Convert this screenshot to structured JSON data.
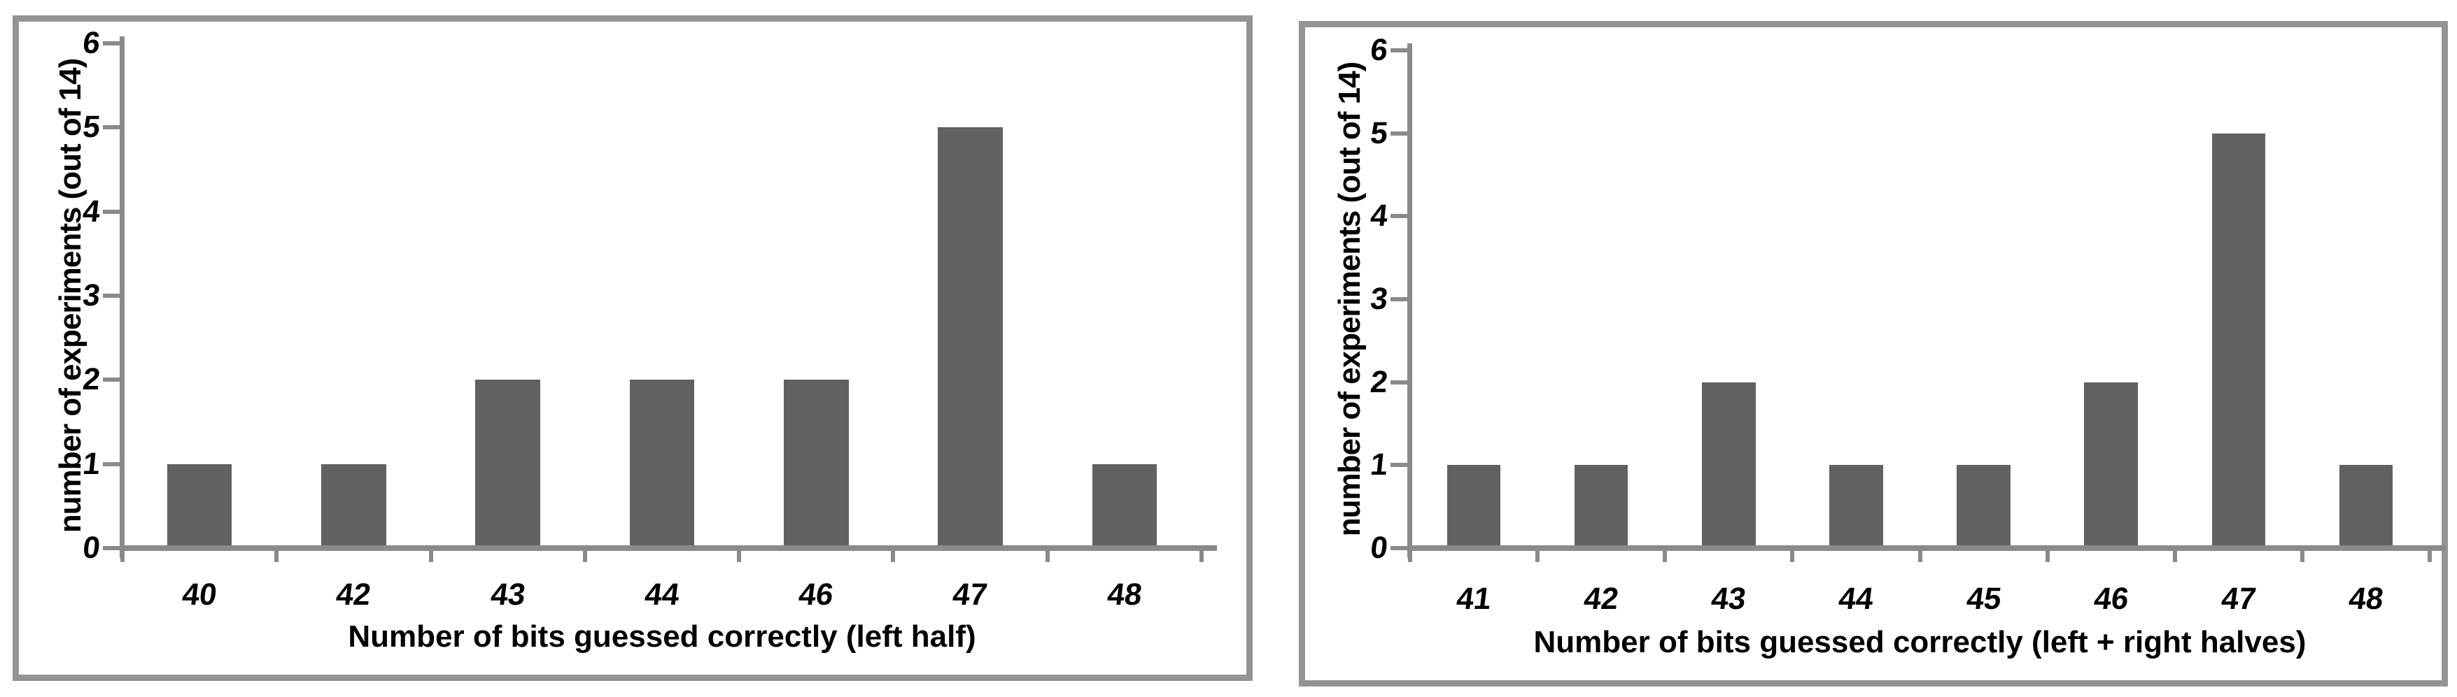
{
  "colors": {
    "background": "#ffffff",
    "bar_fill": "#616161",
    "axis_line": "#8a8a8a",
    "panel_border": "#949494",
    "text": "#000000"
  },
  "chart_data": [
    {
      "type": "bar",
      "title": "",
      "categories": [
        "40",
        "42",
        "43",
        "44",
        "46",
        "47",
        "48"
      ],
      "values": [
        1,
        1,
        2,
        2,
        2,
        5,
        1
      ],
      "xlabel": "Number of bits guessed correctly (left half)",
      "ylabel": "number of experiments (out of 14)",
      "ylim": [
        0,
        6
      ],
      "yticks": [
        0,
        1,
        2,
        3,
        4,
        5,
        6
      ],
      "grid": false,
      "legend": false
    },
    {
      "type": "bar",
      "title": "",
      "categories": [
        "41",
        "42",
        "43",
        "44",
        "45",
        "46",
        "47",
        "48"
      ],
      "values": [
        1,
        1,
        2,
        1,
        1,
        2,
        5,
        1
      ],
      "xlabel": "Number of bits guessed correctly (left + right halves)",
      "ylabel": "number of experiments (out of 14)",
      "ylim": [
        0,
        6
      ],
      "yticks": [
        0,
        1,
        2,
        3,
        4,
        5,
        6
      ],
      "grid": false,
      "legend": false
    }
  ]
}
